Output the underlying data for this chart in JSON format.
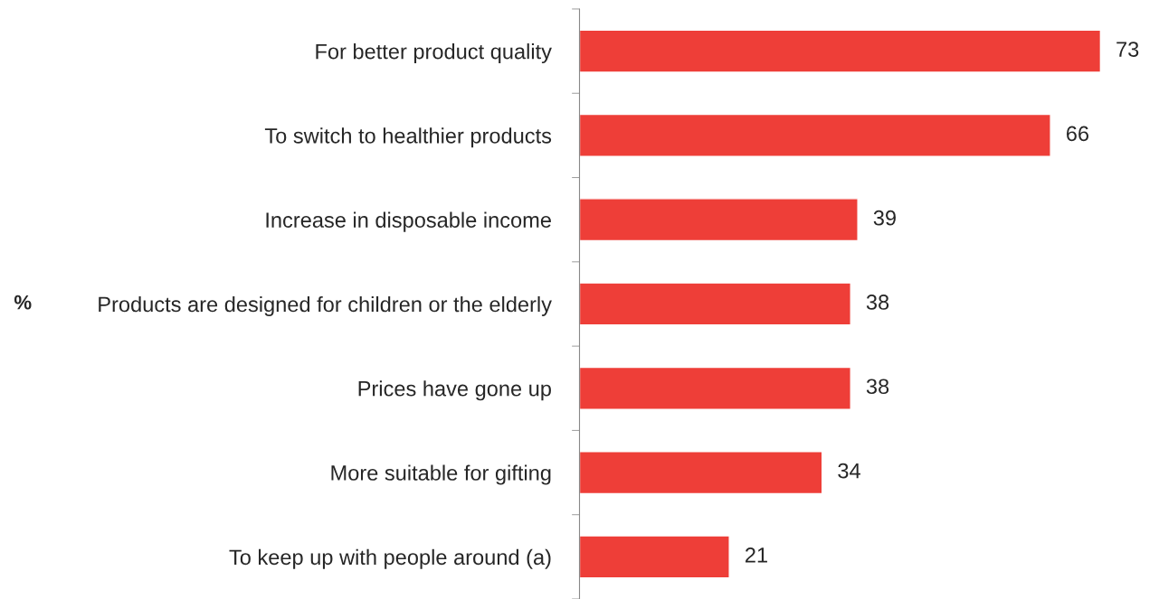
{
  "chart_data": {
    "type": "bar",
    "orientation": "horizontal",
    "annotations": [
      "%"
    ],
    "categories": [
      "For better product quality",
      "To switch to healthier products",
      "Increase in disposable income",
      "Products are designed for children or the elderly",
      "Prices have gone up",
      "More suitable for gifting",
      "To keep up with people around (a)"
    ],
    "values": [
      73,
      66,
      39,
      38,
      38,
      34,
      21
    ],
    "color": "#ee3e38",
    "data_labels": true,
    "grid": false,
    "legend": false,
    "tick_labels": "y"
  }
}
